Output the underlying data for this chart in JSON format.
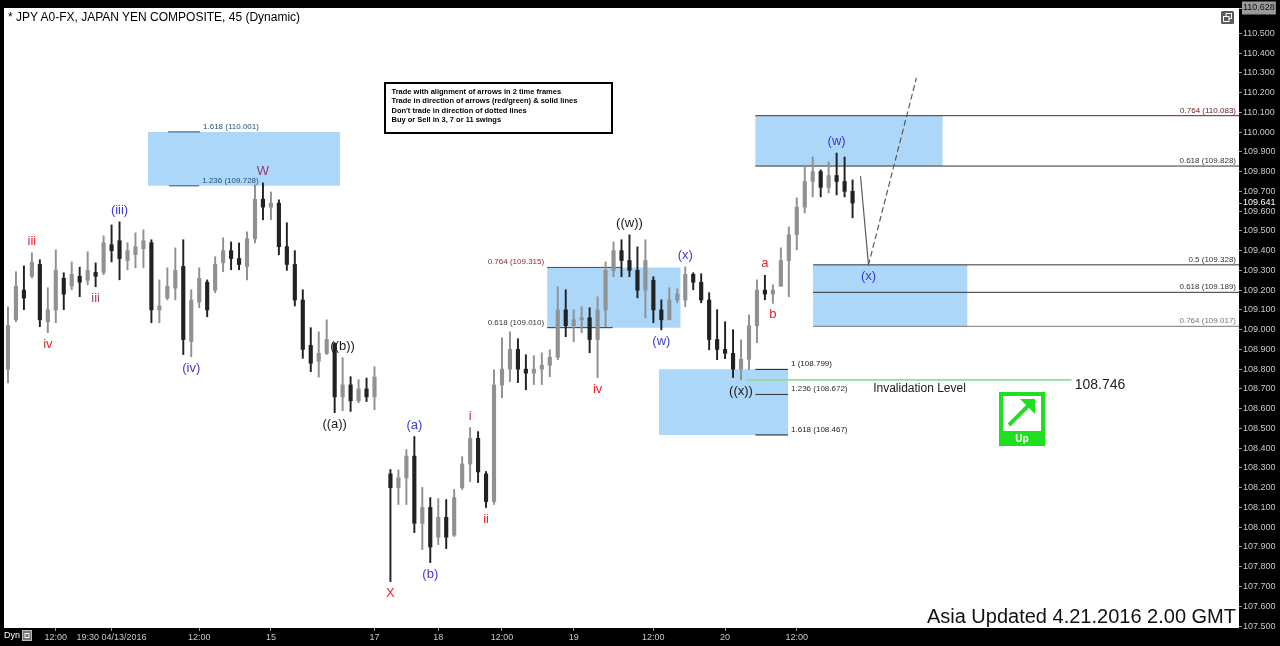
{
  "chart_data": {
    "type": "candlestick",
    "title": "* JPY A0-FX, JAPAN YEN COMPOSITE, 45 (Dynamic)",
    "categories": [
      null,
      null,
      null,
      null,
      null,
      null,
      "12:00",
      null,
      null,
      null,
      null,
      null,
      null,
      "19:30 04/13/2016",
      null,
      null,
      null,
      null,
      null,
      null,
      null,
      null,
      null,
      null,
      "12:00",
      null,
      null,
      null,
      null,
      null,
      null,
      null,
      null,
      "15",
      null,
      null,
      null,
      null,
      null,
      null,
      null,
      null,
      null,
      null,
      null,
      null,
      "17",
      null,
      null,
      null,
      null,
      null,
      null,
      null,
      "18",
      null,
      null,
      null,
      null,
      null,
      null,
      null,
      "12:00",
      null,
      null,
      null,
      null,
      null,
      null,
      null,
      null,
      "19",
      null,
      null,
      null,
      null,
      null,
      null,
      null,
      null,
      null,
      "12:00",
      null,
      null,
      null,
      null,
      null,
      null,
      null,
      null,
      "20",
      null,
      null,
      null,
      null,
      null,
      null,
      null,
      null,
      "12:00",
      null,
      null,
      null,
      null,
      null,
      null,
      null,
      null,
      null,
      null,
      null,
      null,
      null,
      null,
      null,
      null,
      null,
      null,
      null,
      null,
      null,
      null,
      null,
      null,
      null,
      null,
      null,
      null,
      null,
      null,
      null,
      null,
      null,
      null,
      null,
      null,
      null,
      null,
      null,
      null,
      null,
      null,
      null,
      null,
      null,
      null,
      null,
      null,
      null,
      null,
      null,
      null,
      null,
      null,
      null
    ],
    "ohlc": [
      [
        108.8,
        109.116,
        108.731,
        109.02
      ],
      [
        109.05,
        109.293,
        109.04,
        109.22
      ],
      [
        109.2,
        109.323,
        109.101,
        109.16
      ],
      [
        109.27,
        109.389,
        109.262,
        109.34
      ],
      [
        109.33,
        109.354,
        109.015,
        109.05
      ],
      [
        109.04,
        109.212,
        108.985,
        109.1
      ],
      [
        109.1,
        109.404,
        109.035,
        109.3
      ],
      [
        109.26,
        109.288,
        109.101,
        109.18
      ],
      [
        109.22,
        109.343,
        109.202,
        109.28
      ],
      [
        109.27,
        109.316,
        109.167,
        109.24
      ],
      [
        109.25,
        109.394,
        109.227,
        109.3
      ],
      [
        109.29,
        109.338,
        109.217,
        109.27
      ],
      [
        109.29,
        109.475,
        109.278,
        109.44
      ],
      [
        109.43,
        109.53,
        109.343,
        109.4
      ],
      [
        109.45,
        109.546,
        109.252,
        109.36
      ],
      [
        109.35,
        109.44,
        109.303,
        109.4
      ],
      [
        109.38,
        109.49,
        109.313,
        109.42
      ],
      [
        109.41,
        109.505,
        109.313,
        109.45
      ],
      [
        109.44,
        109.455,
        109.035,
        109.1
      ],
      [
        109.1,
        109.252,
        109.035,
        109.12
      ],
      [
        109.16,
        109.313,
        109.151,
        109.22
      ],
      [
        109.21,
        109.414,
        109.151,
        109.3
      ],
      [
        109.32,
        109.455,
        108.874,
        108.95
      ],
      [
        108.94,
        109.202,
        108.863,
        109.15
      ],
      [
        109.14,
        109.313,
        109.111,
        109.26
      ],
      [
        109.24,
        109.252,
        109.065,
        109.1
      ],
      [
        109.2,
        109.369,
        109.187,
        109.33
      ],
      [
        109.34,
        109.465,
        109.293,
        109.4
      ],
      [
        109.4,
        109.444,
        109.303,
        109.36
      ],
      [
        109.36,
        109.439,
        109.303,
        109.33
      ],
      [
        109.32,
        109.495,
        109.252,
        109.46
      ],
      [
        109.46,
        109.733,
        109.439,
        109.66
      ],
      [
        109.66,
        109.743,
        109.556,
        109.62
      ],
      [
        109.62,
        109.697,
        109.556,
        109.64
      ],
      [
        109.64,
        109.657,
        109.379,
        109.42
      ],
      [
        109.42,
        109.541,
        109.3,
        109.33
      ],
      [
        109.33,
        109.4,
        109.12,
        109.15
      ],
      [
        109.15,
        109.202,
        108.855,
        108.9
      ],
      [
        108.92,
        109.01,
        108.787,
        108.83
      ],
      [
        108.84,
        108.989,
        108.76,
        108.88
      ],
      [
        108.88,
        109.05,
        108.874,
        108.95
      ],
      [
        108.93,
        108.934,
        108.58,
        108.66
      ],
      [
        108.66,
        108.858,
        108.59,
        108.72
      ],
      [
        108.72,
        108.762,
        108.586,
        108.64
      ],
      [
        108.64,
        108.747,
        108.63,
        108.7
      ],
      [
        108.7,
        108.755,
        108.636,
        108.66
      ],
      [
        108.66,
        108.813,
        108.595,
        108.76
      ],
      null,
      [
        108.27,
        108.292,
        107.725,
        108.2
      ],
      [
        108.2,
        108.29,
        108.115,
        108.25
      ],
      [
        108.25,
        108.393,
        108.115,
        108.36
      ],
      [
        108.36,
        108.459,
        107.973,
        108.02
      ],
      [
        108.02,
        108.201,
        107.887,
        108.1
      ],
      [
        108.1,
        108.15,
        107.821,
        107.9
      ],
      [
        107.95,
        108.145,
        107.912,
        108.05
      ],
      [
        108.05,
        108.14,
        107.892,
        107.95
      ],
      [
        107.96,
        108.191,
        107.953,
        108.15
      ],
      [
        108.2,
        108.357,
        108.191,
        108.32
      ],
      [
        108.32,
        108.504,
        108.231,
        108.45
      ],
      [
        108.45,
        108.484,
        108.226,
        108.28
      ],
      [
        108.27,
        108.282,
        108.1,
        108.13
      ],
      [
        108.13,
        108.797,
        108.115,
        108.72
      ],
      [
        108.72,
        108.959,
        108.656,
        108.8
      ],
      [
        108.8,
        108.989,
        108.737,
        108.9
      ],
      [
        108.9,
        108.954,
        108.732,
        108.8
      ],
      [
        108.8,
        108.873,
        108.696,
        108.78
      ],
      [
        108.78,
        108.868,
        108.722,
        108.8
      ],
      [
        108.8,
        108.883,
        108.722,
        108.82
      ],
      [
        108.82,
        108.898,
        108.762,
        108.86
      ],
      [
        108.86,
        109.217,
        108.848,
        109.1
      ],
      [
        109.1,
        109.202,
        108.964,
        109.02
      ],
      [
        109.02,
        109.101,
        108.939,
        109.05
      ],
      [
        109.05,
        109.116,
        108.984,
        109.06
      ],
      [
        109.06,
        109.111,
        108.883,
        108.95
      ],
      [
        108.95,
        109.166,
        108.757,
        109.1
      ],
      [
        109.1,
        109.343,
        109.015,
        109.3
      ],
      [
        109.3,
        109.444,
        109.268,
        109.4
      ],
      [
        109.4,
        109.455,
        109.268,
        109.35
      ],
      [
        109.35,
        109.48,
        109.268,
        109.3
      ],
      [
        109.3,
        109.419,
        109.161,
        109.2
      ],
      [
        109.2,
        109.455,
        109.06,
        109.35
      ],
      [
        109.25,
        109.268,
        109.035,
        109.1
      ],
      [
        109.1,
        109.151,
        108.999,
        109.05
      ],
      [
        109.05,
        109.212,
        109.05,
        109.15
      ],
      [
        109.15,
        109.207,
        109.136,
        109.18
      ],
      [
        109.15,
        109.318,
        109.116,
        109.28
      ],
      [
        109.28,
        109.288,
        109.202,
        109.24
      ],
      [
        109.24,
        109.283,
        109.136,
        109.15
      ],
      [
        109.15,
        109.187,
        108.898,
        108.95
      ],
      [
        108.95,
        109.101,
        108.848,
        108.9
      ],
      [
        108.9,
        109.04,
        108.853,
        108.88
      ],
      [
        108.88,
        109.0,
        108.758,
        108.8
      ],
      [
        108.8,
        108.949,
        108.746,
        108.85
      ],
      [
        108.85,
        109.075,
        108.797,
        109.02
      ],
      [
        109.02,
        109.252,
        108.934,
        109.2
      ],
      [
        109.2,
        109.275,
        109.151,
        109.18
      ],
      [
        109.18,
        109.227,
        109.133,
        109.2
      ],
      [
        109.22,
        109.414,
        109.22,
        109.35
      ],
      [
        109.35,
        109.52,
        109.166,
        109.48
      ],
      [
        109.48,
        109.667,
        109.404,
        109.62
      ],
      [
        109.62,
        109.824,
        109.591,
        109.75
      ],
      [
        109.75,
        109.874,
        109.672,
        109.8
      ],
      [
        109.8,
        109.809,
        109.672,
        109.72
      ],
      [
        109.72,
        109.849,
        109.692,
        109.78
      ],
      [
        109.78,
        109.894,
        109.682,
        109.75
      ],
      [
        109.75,
        109.874,
        109.672,
        109.7
      ],
      [
        109.7,
        109.758,
        109.566,
        109.641
      ],
      null,
      null,
      null,
      null,
      null,
      null,
      null,
      null,
      null,
      null,
      null,
      null,
      null,
      null,
      null,
      null,
      null,
      null,
      null,
      null,
      null,
      null,
      null,
      null,
      null,
      null,
      null,
      null,
      null,
      null,
      null,
      null,
      null,
      null,
      null,
      null,
      null,
      null,
      null,
      null,
      null,
      null,
      null,
      null,
      null,
      null,
      null,
      null
    ],
    "colors": [
      "#919191",
      "#919191",
      "#222222",
      "#919191",
      "#222222",
      "#919191",
      "#919191",
      "#222222",
      "#919191",
      "#222222",
      "#919191",
      "#222222",
      "#919191",
      "#222222",
      "#222222",
      "#919191",
      "#919191",
      "#919191",
      "#222222",
      "#919191",
      "#919191",
      "#919191",
      "#222222",
      "#919191",
      "#919191",
      "#222222",
      "#919191",
      "#919191",
      "#222222",
      "#222222",
      "#919191",
      "#919191",
      "#222222",
      "#919191",
      "#222222",
      "#222222",
      "#222222",
      "#222222",
      "#222222",
      "#919191",
      "#919191",
      "#222222",
      "#919191",
      "#222222",
      "#919191",
      "#222222",
      "#919191",
      null,
      "#222222",
      "#919191",
      "#919191",
      "#222222",
      "#919191",
      "#222222",
      "#919191",
      "#222222",
      "#919191",
      "#919191",
      "#919191",
      "#222222",
      "#222222",
      "#919191",
      "#919191",
      "#919191",
      "#222222",
      "#222222",
      "#919191",
      "#919191",
      "#919191",
      "#919191",
      "#222222",
      "#919191",
      "#919191",
      "#222222",
      "#919191",
      "#919191",
      "#919191",
      "#222222",
      "#222222",
      "#222222",
      "#919191",
      "#222222",
      "#222222",
      "#919191",
      "#919191",
      "#919191",
      "#222222",
      "#222222",
      "#222222",
      "#222222",
      "#222222",
      "#222222",
      "#919191",
      "#919191",
      "#919191",
      "#222222",
      "#919191",
      "#919191",
      "#919191",
      "#919191",
      "#919191",
      "#919191",
      "#222222",
      "#919191",
      "#222222",
      "#222222",
      "#222222",
      null,
      null,
      null,
      null,
      null,
      null,
      null,
      null,
      null,
      null,
      null,
      null,
      null,
      null,
      null,
      null,
      null,
      null,
      null,
      null,
      null,
      null,
      null,
      null,
      null,
      null,
      null,
      null,
      null,
      null,
      null,
      null,
      null,
      null,
      null,
      null,
      null,
      null,
      null,
      null,
      null,
      null,
      null,
      null,
      null,
      null,
      null,
      null
    ],
    "series": [
      {
        "type": "line",
        "color": "#5a5a5a",
        "values": [
          null,
          null,
          null,
          null,
          null,
          null,
          null,
          null,
          null,
          null,
          null,
          null,
          null,
          null,
          null,
          null,
          null,
          null,
          null,
          null,
          null,
          null,
          null,
          null,
          null,
          null,
          null,
          null,
          null,
          null,
          null,
          null,
          null,
          null,
          null,
          null,
          null,
          null,
          null,
          null,
          null,
          null,
          null,
          null,
          null,
          null,
          null,
          null,
          null,
          null,
          null,
          null,
          null,
          null,
          null,
          null,
          null,
          null,
          null,
          null,
          null,
          null,
          null,
          null,
          null,
          null,
          null,
          null,
          null,
          null,
          null,
          null,
          null,
          null,
          null,
          null,
          null,
          null,
          null,
          null,
          null,
          null,
          null,
          null,
          null,
          null,
          null,
          null,
          null,
          null,
          null,
          null,
          null,
          null,
          null,
          null,
          null,
          null,
          null,
          null,
          null,
          null,
          null,
          null,
          null,
          null,
          null,
          109.775,
          109.328,
          null,
          null,
          null,
          null,
          null,
          null,
          null,
          null,
          null,
          null,
          null,
          null,
          null,
          null,
          null,
          null,
          null,
          null,
          null,
          null,
          null,
          null,
          null,
          null,
          null,
          null,
          null,
          null,
          null,
          null,
          null,
          null,
          null,
          null,
          null,
          null,
          null,
          null,
          null,
          null,
          null,
          null,
          null,
          null,
          null,
          null
        ]
      },
      {
        "type": "line",
        "color": "#5a5a5a",
        "line_style": "dashed",
        "values": [
          null,
          null,
          null,
          null,
          null,
          null,
          null,
          null,
          null,
          null,
          null,
          null,
          null,
          null,
          null,
          null,
          null,
          null,
          null,
          null,
          null,
          null,
          null,
          null,
          null,
          null,
          null,
          null,
          null,
          null,
          null,
          null,
          null,
          null,
          null,
          null,
          null,
          null,
          null,
          null,
          null,
          null,
          null,
          null,
          null,
          null,
          null,
          null,
          null,
          null,
          null,
          null,
          null,
          null,
          null,
          null,
          null,
          null,
          null,
          null,
          null,
          null,
          null,
          null,
          null,
          null,
          null,
          null,
          null,
          null,
          null,
          null,
          null,
          null,
          null,
          null,
          null,
          null,
          null,
          null,
          null,
          null,
          null,
          null,
          null,
          null,
          null,
          null,
          null,
          null,
          null,
          null,
          null,
          null,
          null,
          null,
          null,
          null,
          null,
          null,
          null,
          null,
          null,
          null,
          null,
          null,
          null,
          null,
          109.328,
          null,
          null,
          null,
          null,
          null,
          110.272,
          null,
          null,
          null,
          null,
          null,
          null,
          null,
          null,
          null,
          null,
          null,
          null,
          null,
          null,
          null,
          null,
          null,
          null,
          null,
          null,
          null,
          null,
          null,
          null,
          null,
          null,
          null,
          null,
          null,
          null,
          null,
          null,
          null,
          null,
          null,
          null,
          null,
          null,
          null,
          null
        ]
      }
    ],
    "ylim": [
      107.49,
      110.628
    ],
    "yticks": [
      {
        "value": 107.5,
        "label": "107.500"
      },
      {
        "value": 107.6,
        "label": "107.600"
      },
      {
        "value": 107.7,
        "label": "107.700"
      },
      {
        "value": 107.8,
        "label": "107.800"
      },
      {
        "value": 107.9,
        "label": "107.900"
      },
      {
        "value": 108,
        "label": "108.000"
      },
      {
        "value": 108.1,
        "label": "108.100"
      },
      {
        "value": 108.2,
        "label": "108.200"
      },
      {
        "value": 108.3,
        "label": "108.300"
      },
      {
        "value": 108.4,
        "label": "108.400"
      },
      {
        "value": 108.5,
        "label": "108.500"
      },
      {
        "value": 108.6,
        "label": "108.600"
      },
      {
        "value": 108.7,
        "label": "108.700"
      },
      {
        "value": 108.8,
        "label": "108.800"
      },
      {
        "value": 108.9,
        "label": "108.900"
      },
      {
        "value": 109,
        "label": "109.000"
      },
      {
        "value": 109.1,
        "label": "109.100"
      },
      {
        "value": 109.2,
        "label": "109.200"
      },
      {
        "value": 109.3,
        "label": "109.300"
      },
      {
        "value": 109.4,
        "label": "109.400"
      },
      {
        "value": 109.5,
        "label": "109.500"
      },
      {
        "value": 109.6,
        "label": "109.600"
      },
      109.641,
      {
        "value": 109.7,
        "label": "109.700"
      },
      {
        "value": 109.8,
        "label": "109.800"
      },
      {
        "value": 109.9,
        "label": "109.900"
      },
      {
        "value": 110,
        "label": "110.000"
      },
      {
        "value": 110.1,
        "label": "110.100"
      },
      {
        "value": 110.2,
        "label": "110.200"
      },
      {
        "value": 110.3,
        "label": "110.300"
      },
      {
        "value": 110.4,
        "label": "110.400"
      },
      {
        "value": 110.5,
        "label": "110.500"
      },
      110.628
    ],
    "bands": [
      {
        "axis": "y",
        "from": 109.728,
        "to": 110.001,
        "color": "#acd7f9"
      },
      {
        "axis": "y",
        "from": 109.01,
        "to": 109.315,
        "color": "#acd7f9"
      },
      {
        "axis": "y",
        "from": 108.467,
        "to": 108.799,
        "color": "#acd7f9"
      },
      {
        "axis": "y",
        "from": 109.828,
        "to": 110.083,
        "color": "#acd7f9"
      },
      {
        "axis": "y",
        "from": 109.017,
        "to": 109.328,
        "color": "#acd7f9"
      }
    ],
    "ref_lines": [
      {
        "axis": "y",
        "value": 110.083,
        "label": "0.764 (110.083)",
        "color": "#6b2020"
      },
      {
        "axis": "y",
        "value": 109.828,
        "label": "0.618 (109.828)",
        "color": "#333333"
      },
      {
        "axis": "y",
        "value": 109.328,
        "label": "0.5 (109.328)",
        "color": "#333333"
      },
      {
        "axis": "y",
        "value": 109.189,
        "label": "0.618 (109.189)",
        "color": "#333333"
      },
      {
        "axis": "y",
        "value": 109.017,
        "label": "0.764 (109.017)",
        "color": "#777777"
      },
      {
        "axis": "y",
        "value": 108.746,
        "label": "Invalidation Level",
        "color": "#90e090"
      },
      {
        "axis": "y",
        "value": 110.001,
        "label": "1.618 (110.001)",
        "color": "#27507a"
      },
      {
        "axis": "y",
        "value": 109.728,
        "label": "1.236 (109.728)",
        "color": "#27507a"
      },
      {
        "axis": "y",
        "value": 109.315,
        "label": "0.764 (109.315)",
        "color": "#8b2a2a"
      },
      {
        "axis": "y",
        "value": 109.01,
        "label": "0.618 (109.010)",
        "color": "#333333"
      },
      {
        "axis": "y",
        "value": 108.799,
        "label": "1 (108.799)",
        "color": "#1a1a1a"
      },
      {
        "axis": "y",
        "value": 108.672,
        "label": "1.236 (108.672)",
        "color": "#333333"
      },
      {
        "axis": "y",
        "value": 108.467,
        "label": "1.618 (108.467)",
        "color": "#1a1a1a"
      }
    ],
    "annotations": [
      {
        "text": "iii",
        "y": 109.389
      },
      {
        "text": "iv",
        "y": 108.985
      },
      {
        "text": "(iii)",
        "y": 109.546
      },
      {
        "text": "(iv)",
        "y": 108.863
      },
      {
        "text": "W",
        "y": 109.743
      },
      {
        "text": "((a))",
        "y": 108.58
      },
      {
        "text": "((b))",
        "y": 108.858
      },
      {
        "text": "X",
        "y": 107.725
      },
      {
        "text": "(a)",
        "y": 108.459
      },
      {
        "text": "(b)",
        "y": 107.821
      },
      {
        "text": "i",
        "y": 108.504
      },
      {
        "text": "ii",
        "y": 108.1
      },
      {
        "text": "iii",
        "y": 109.217
      },
      {
        "text": "iv",
        "y": 108.757
      },
      {
        "text": "((w))",
        "y": 109.48
      },
      {
        "text": "(w)",
        "y": 108.999
      },
      {
        "text": "(x)",
        "y": 109.318
      },
      {
        "text": "((x))",
        "y": 108.746
      },
      {
        "text": "a",
        "y": 109.275
      },
      {
        "text": "b",
        "y": 109.133
      },
      {
        "text": "(w)",
        "y": 109.894
      },
      {
        "text": "(x)",
        "y": 109.328
      },
      "Trade with alignment of arrows in 2 time frames",
      "Trade in direction of arrows (red/green) & solid lines",
      "Don't trade in direction of dotted lines",
      "Buy or Sell in 3, 7 or 11 swings",
      "Asia Updated 4.21.2016 2.00 GMT",
      "Up",
      "Dyn",
      "108.746"
    ]
  }
}
